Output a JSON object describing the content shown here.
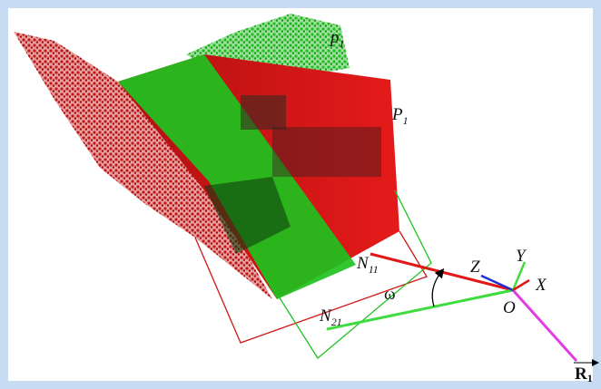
{
  "labels": [
    {
      "text": "p",
      "sub": "1"
    },
    {
      "text": "P",
      "sub": "1"
    },
    {
      "text": "N",
      "sub": "11"
    },
    {
      "text": "N",
      "sub": "21"
    },
    {
      "text": "ω"
    },
    {
      "text": "Z"
    },
    {
      "text": "Y"
    },
    {
      "text": "X"
    },
    {
      "text": "O"
    },
    {
      "text": "R",
      "sub": "1"
    }
  ]
}
